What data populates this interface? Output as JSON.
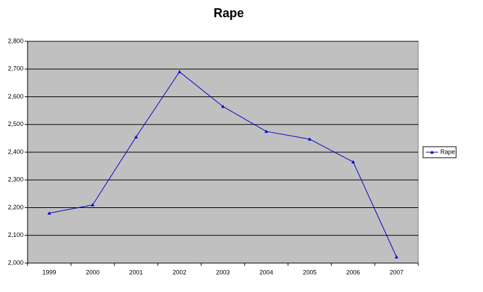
{
  "chart_data": {
    "type": "line",
    "title": "Rape",
    "categories": [
      "1999",
      "2000",
      "2001",
      "2002",
      "2003",
      "2004",
      "2005",
      "2006",
      "2007"
    ],
    "series": [
      {
        "name": "Rape",
        "color": "#0000cc",
        "values": [
          2180,
          2210,
          2455,
          2690,
          2565,
          2475,
          2447,
          2365,
          2022
        ]
      }
    ],
    "ylim": [
      2000,
      2800
    ],
    "yticks": [
      {
        "value": 2000,
        "label": "2,000"
      },
      {
        "value": 2100,
        "label": "2,100"
      },
      {
        "value": 2200,
        "label": "2,200"
      },
      {
        "value": 2300,
        "label": "2,300"
      },
      {
        "value": 2400,
        "label": "2,400"
      },
      {
        "value": 2500,
        "label": "2,500"
      },
      {
        "value": 2600,
        "label": "2,600"
      },
      {
        "value": 2700,
        "label": "2,700"
      },
      {
        "value": 2800,
        "label": "2,800"
      }
    ],
    "grid": true,
    "legend": "right",
    "plot_background": "#c0c0c0"
  }
}
